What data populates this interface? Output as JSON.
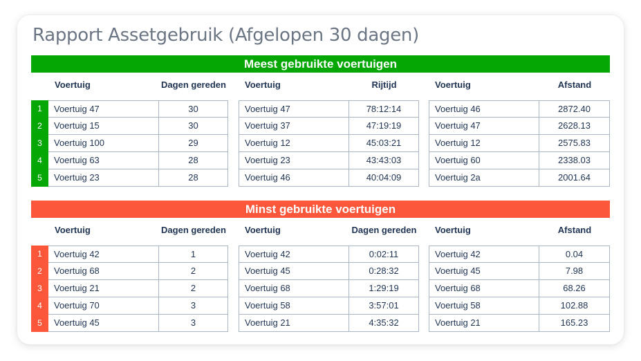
{
  "title": "Rapport Assetgebruik (Afgelopen 30 dagen)",
  "colors": {
    "most": "#04a704",
    "least": "#fd573b"
  },
  "most": {
    "banner": "Meest gebruikte voertuigen",
    "ranks": [
      "1",
      "2",
      "3",
      "4",
      "5"
    ],
    "tables": [
      {
        "col_name": "Voertuig",
        "col_value": "Dagen gereden",
        "rows": [
          {
            "name": "Voertuig 47",
            "value": "30"
          },
          {
            "name": "Voertuig 15",
            "value": "30"
          },
          {
            "name": "Voertuig 100",
            "value": "29"
          },
          {
            "name": "Voertuig 63",
            "value": "28"
          },
          {
            "name": "Voertuig 23",
            "value": "28"
          }
        ]
      },
      {
        "col_name": "Voertuig",
        "col_value": "Rijtijd",
        "rows": [
          {
            "name": "Voertuig 47",
            "value": "78:12:14"
          },
          {
            "name": "Voertuig 37",
            "value": "47:19:19"
          },
          {
            "name": "Voertuig 12",
            "value": "45:03:21"
          },
          {
            "name": "Voertuig 23",
            "value": "43:43:03"
          },
          {
            "name": "Voertuig 46",
            "value": "40:04:09"
          }
        ]
      },
      {
        "col_name": "Voertuig",
        "col_value": "Afstand",
        "rows": [
          {
            "name": "Voertuig 46",
            "value": "2872.40"
          },
          {
            "name": "Voertuig 47",
            "value": "2628.13"
          },
          {
            "name": "Voertuig 12",
            "value": "2575.83"
          },
          {
            "name": "Voertuig 60",
            "value": "2338.03"
          },
          {
            "name": "Voertuig 2a",
            "value": "2001.64"
          }
        ]
      }
    ]
  },
  "least": {
    "banner": "Minst gebruikte voertuigen",
    "ranks": [
      "1",
      "2",
      "3",
      "4",
      "5"
    ],
    "tables": [
      {
        "col_name": "Voertuig",
        "col_value": "Dagen gereden",
        "rows": [
          {
            "name": "Voertuig 42",
            "value": "1"
          },
          {
            "name": "Voertuig 68",
            "value": "2"
          },
          {
            "name": "Voertuig 21",
            "value": "2"
          },
          {
            "name": "Voertuig 70",
            "value": "3"
          },
          {
            "name": "Voertuig 45",
            "value": "3"
          }
        ]
      },
      {
        "col_name": "Voertuig",
        "col_value": "Dagen gereden",
        "rows": [
          {
            "name": "Voertuig 42",
            "value": "0:02:11"
          },
          {
            "name": "Voertuig 45",
            "value": "0:28:32"
          },
          {
            "name": "Voertuig 68",
            "value": "1:29:19"
          },
          {
            "name": "Voertuig 58",
            "value": "3:57:01"
          },
          {
            "name": "Voertuig 21",
            "value": "4:35:32"
          }
        ]
      },
      {
        "col_name": "Voertuig",
        "col_value": "Afstand",
        "rows": [
          {
            "name": "Voertuig 42",
            "value": "0.04"
          },
          {
            "name": "Voertuig 45",
            "value": "7.98"
          },
          {
            "name": "Voertuig 68",
            "value": "68.26"
          },
          {
            "name": "Voertuig 58",
            "value": "102.88"
          },
          {
            "name": "Voertuig 21",
            "value": "165.23"
          }
        ]
      }
    ]
  }
}
